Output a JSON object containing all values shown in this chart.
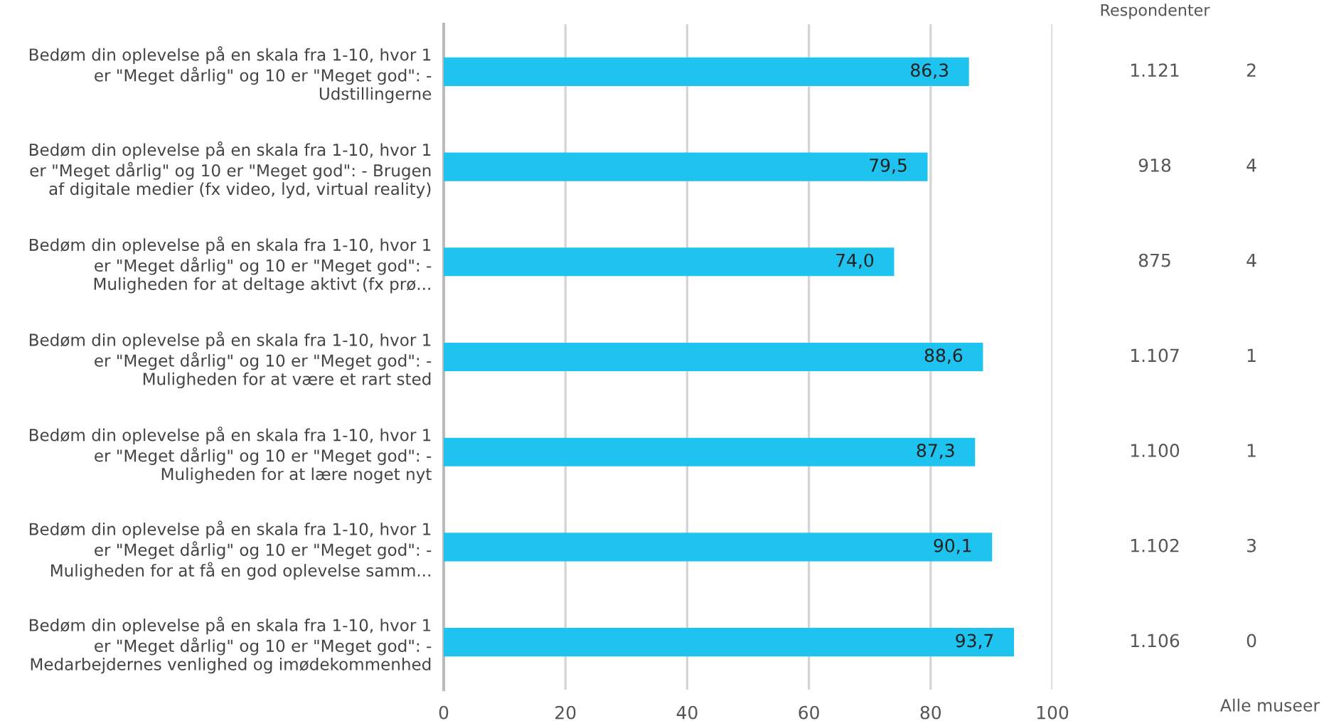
{
  "chart_data": {
    "type": "bar",
    "orientation": "horizontal",
    "categories": [
      "Bedøm din oplevelse på en skala fra 1-10, hvor 1\ner \"Meget dårlig\" og 10 er \"Meget god\": -\nUdstillingerne",
      "Bedøm din oplevelse på en skala fra 1-10, hvor 1\ner \"Meget dårlig\" og 10 er \"Meget god\": - Brugen\naf digitale medier (fx video, lyd, virtual reality)",
      "Bedøm din oplevelse på en skala fra 1-10, hvor 1\ner \"Meget dårlig\" og 10 er \"Meget god\": -\nMuligheden for at deltage aktivt (fx prø...",
      "Bedøm din oplevelse på en skala fra 1-10, hvor 1\ner \"Meget dårlig\" og 10 er \"Meget god\": -\nMuligheden for at være et rart sted",
      "Bedøm din oplevelse på en skala fra 1-10, hvor 1\ner \"Meget dårlig\" og 10 er \"Meget god\": -\nMuligheden for at lære noget nyt",
      "Bedøm din oplevelse på en skala fra 1-10, hvor 1\ner \"Meget dårlig\" og 10 er \"Meget god\": -\nMuligheden for at få en god oplevelse samm...",
      "Bedøm din oplevelse på en skala fra 1-10, hvor 1\ner \"Meget dårlig\" og 10 er \"Meget god\": -\nMedarbejdernes venlighed og imødekommenhed"
    ],
    "values": [
      86.3,
      79.5,
      74.0,
      88.6,
      87.3,
      90.1,
      93.7
    ],
    "value_labels": [
      "86,3",
      "79,5",
      "74,0",
      "88,6",
      "87,3",
      "90,1",
      "93,7"
    ],
    "color": "#1ec3f0",
    "xlim": [
      0,
      100
    ],
    "xticks": [
      0,
      20,
      40,
      60,
      80,
      100
    ],
    "grid": "x",
    "annotations": [
      "Respondenter",
      "1.121",
      "918",
      "875",
      "1.107",
      "1.100",
      "1.102",
      "1.106",
      "Alle museer",
      "2",
      "4",
      "4",
      "1",
      "1",
      "3",
      "0"
    ]
  }
}
